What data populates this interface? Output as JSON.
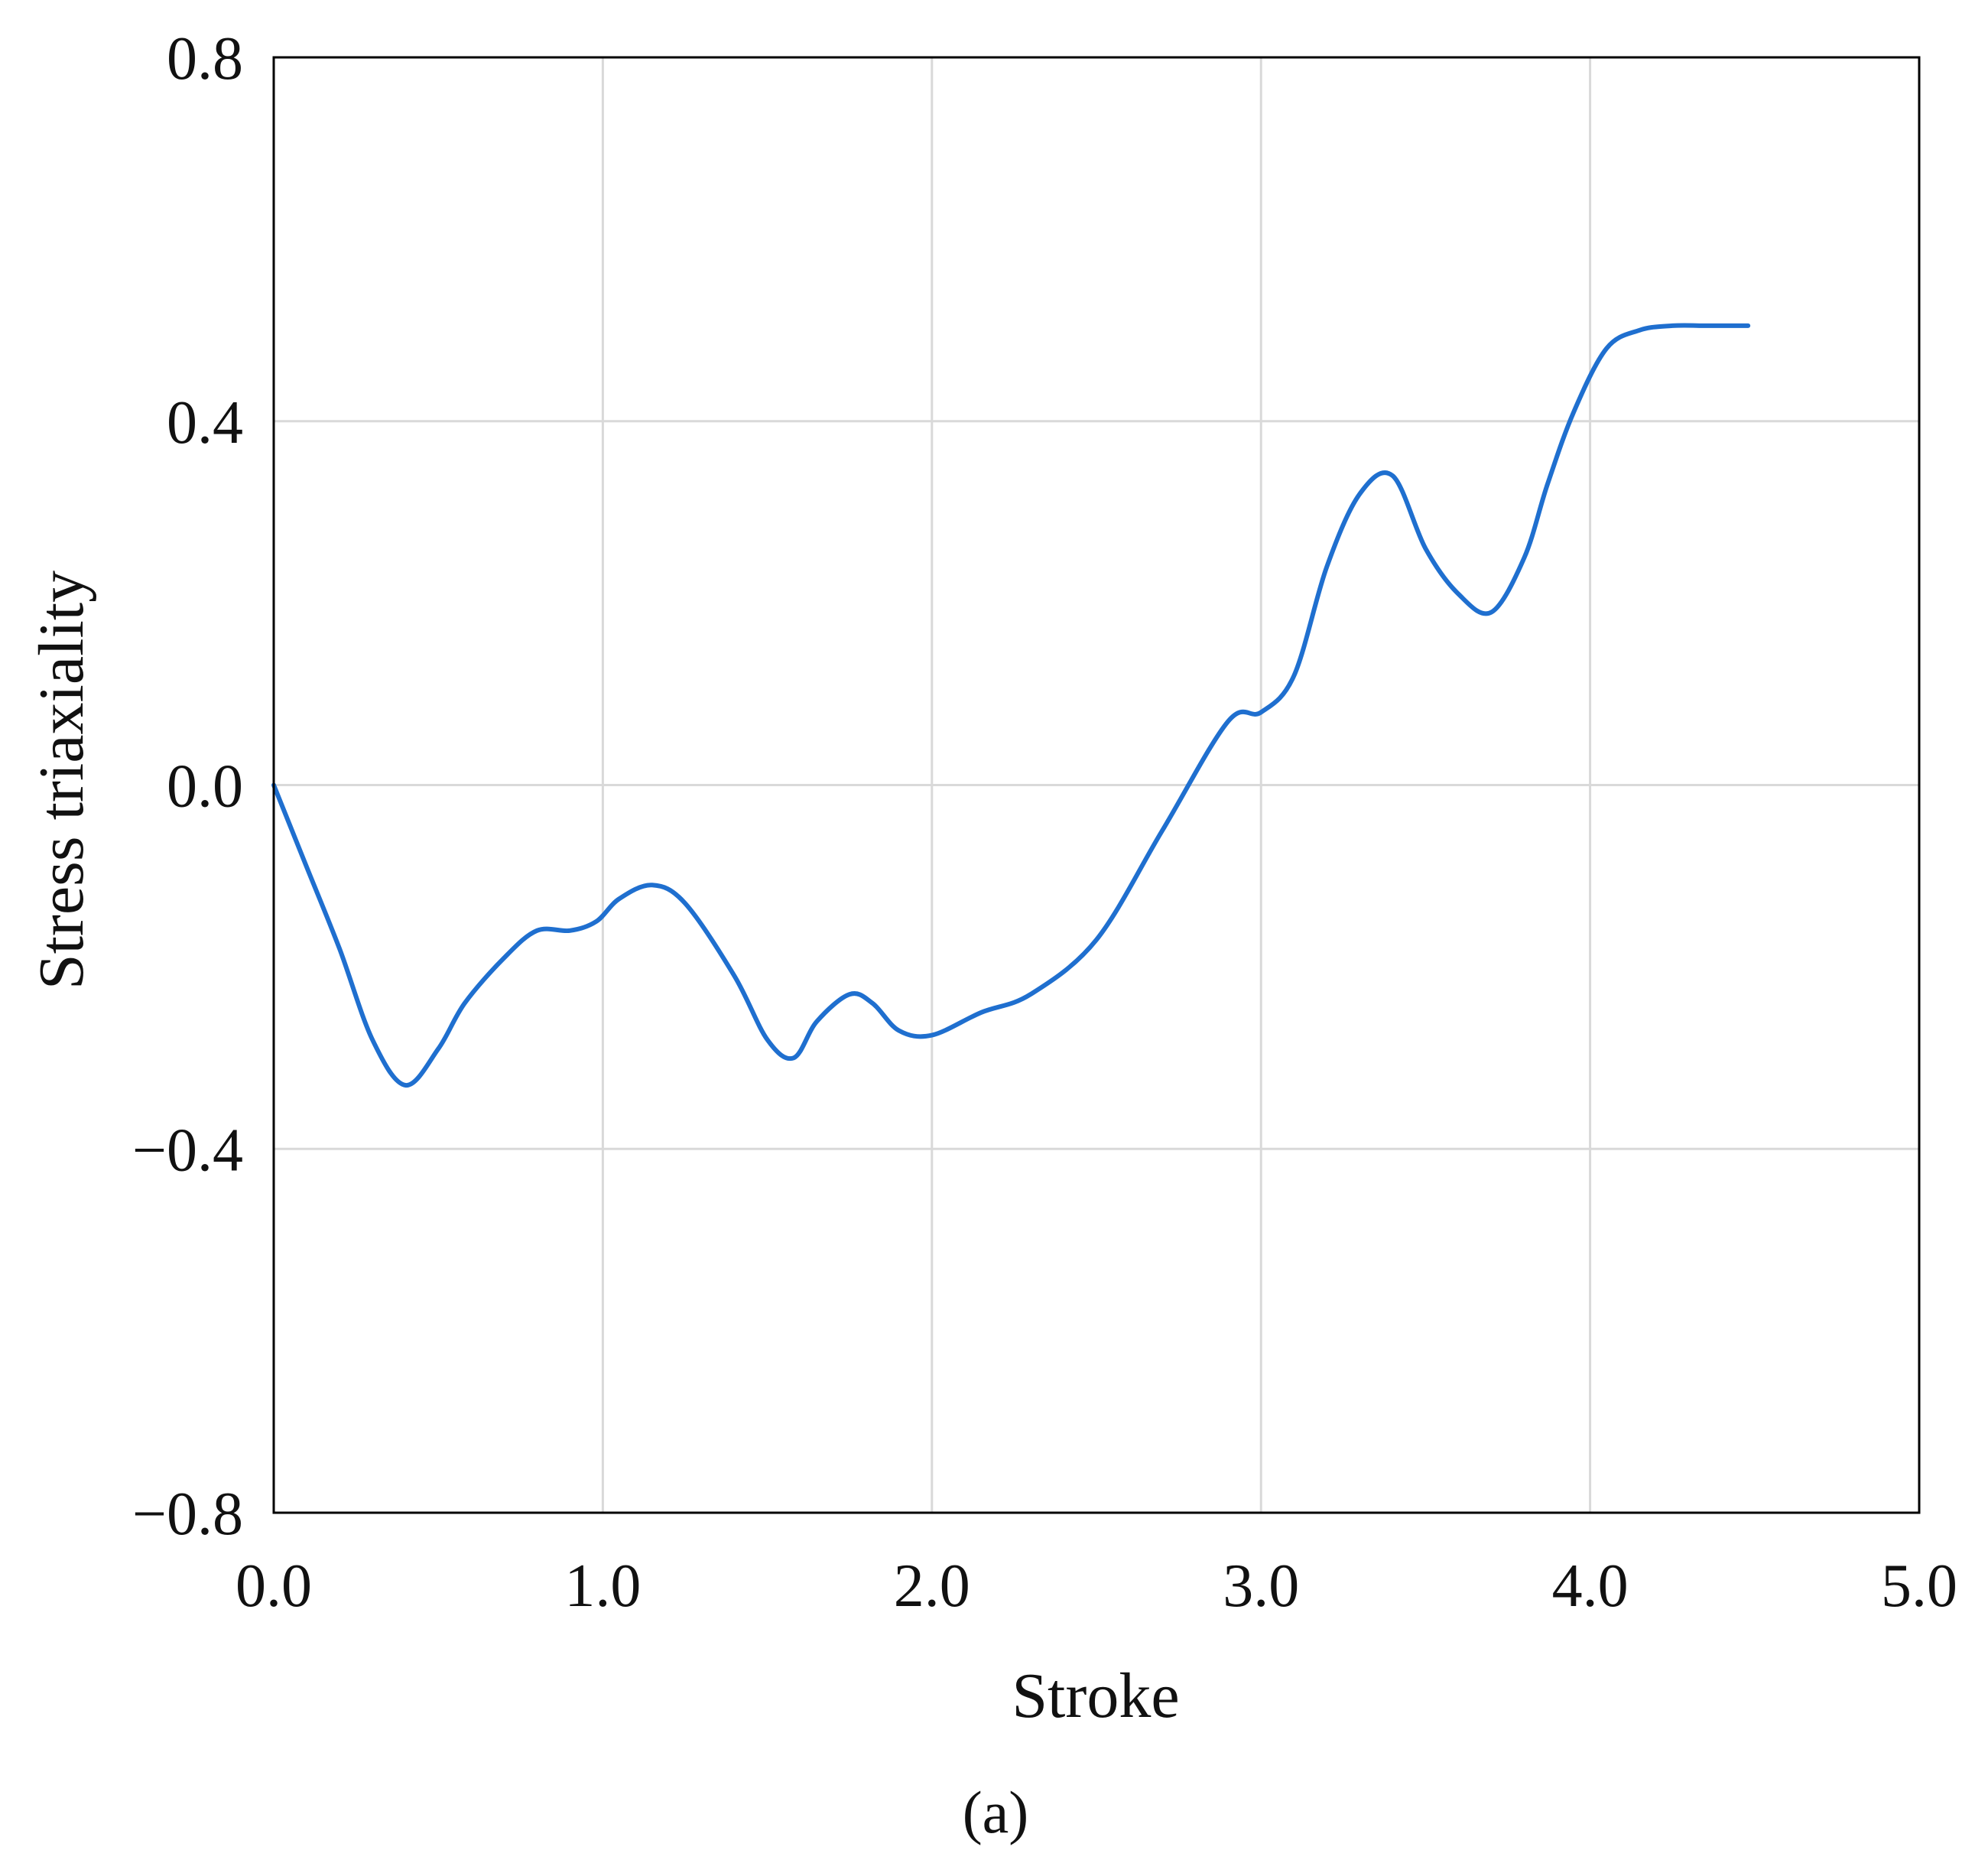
{
  "chart_data": {
    "type": "line",
    "title": "",
    "xlabel": "Stroke",
    "ylabel": "Stress triaxiality",
    "xlim": [
      0.0,
      5.0
    ],
    "ylim": [
      -0.8,
      0.8
    ],
    "x_ticks": [
      "0.0",
      "1.0",
      "2.0",
      "3.0",
      "4.0",
      "5.0"
    ],
    "y_ticks": [
      "−0.8",
      "−0.4",
      "0.0",
      "0.4",
      "0.8"
    ],
    "x_tick_values": [
      0,
      1,
      2,
      3,
      4,
      5
    ],
    "y_tick_values": [
      -0.8,
      -0.4,
      0.0,
      0.4,
      0.8
    ],
    "grid": true,
    "line_color": "#1f6fcf",
    "panel_label": "(a)",
    "series": [
      {
        "x": [
          0.0,
          0.1,
          0.2,
          0.3,
          0.4,
          0.5,
          0.58,
          0.7,
          0.8,
          0.9,
          0.98,
          1.05,
          1.15,
          1.25,
          1.4,
          1.5,
          1.58,
          1.65,
          1.75,
          1.82,
          1.9,
          2.0,
          2.15,
          2.3,
          2.5,
          2.7,
          2.9,
          3.0,
          3.1,
          3.2,
          3.3,
          3.4,
          3.5,
          3.6,
          3.7,
          3.8,
          3.87,
          3.95,
          4.05,
          4.15,
          4.25,
          4.35,
          4.4,
          4.48
        ],
        "y": [
          0.0,
          -0.09,
          -0.18,
          -0.28,
          -0.33,
          -0.29,
          -0.24,
          -0.19,
          -0.16,
          -0.16,
          -0.15,
          -0.125,
          -0.11,
          -0.13,
          -0.21,
          -0.28,
          -0.3,
          -0.26,
          -0.23,
          -0.24,
          -0.27,
          -0.275,
          -0.25,
          -0.23,
          -0.17,
          -0.05,
          0.07,
          0.08,
          0.12,
          0.24,
          0.32,
          0.34,
          0.26,
          0.21,
          0.19,
          0.25,
          0.33,
          0.41,
          0.48,
          0.5,
          0.505,
          0.505,
          0.505,
          0.505
        ]
      }
    ]
  }
}
